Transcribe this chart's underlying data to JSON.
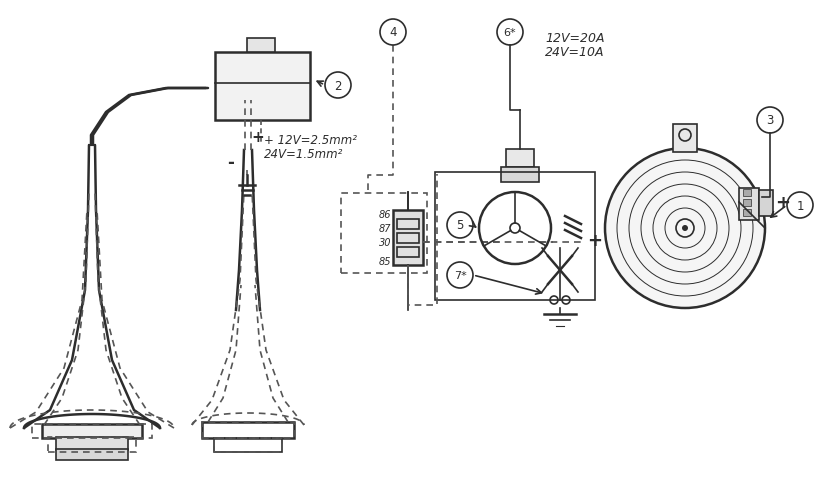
{
  "bg_color": "#ffffff",
  "line_color": "#2d2d2d",
  "dashed_color": "#555555",
  "fig_width": 8.15,
  "fig_height": 4.81,
  "text_voltage1": "+ 12V=2.5mm²",
  "text_voltage2": "24V=1.5mm²",
  "text_fuse1": "12V=20A",
  "text_fuse2": "24V=10A",
  "relay_pins": [
    "86",
    "87",
    "30",
    "85"
  ],
  "plus_sign": "+",
  "minus_sign": "-",
  "labels": [
    "1",
    "2",
    "3",
    "4",
    "5",
    "6*",
    "7*"
  ]
}
